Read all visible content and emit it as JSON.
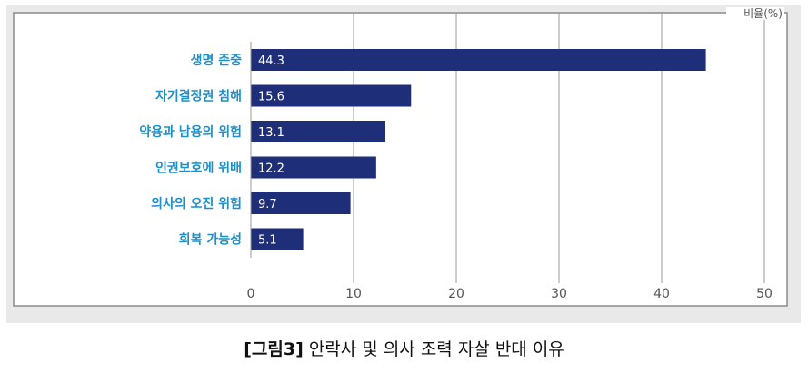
{
  "chart_data": {
    "type": "bar",
    "orientation": "horizontal",
    "categories": [
      "생명 존중",
      "자기결정권 침해",
      "약용과 남용의 위험",
      "인권보호에 위배",
      "의사의 오진 위험",
      "회복 가능성"
    ],
    "values": [
      44.3,
      15.6,
      13.1,
      12.2,
      9.7,
      5.1
    ],
    "value_labels": [
      "44.3",
      "15.6",
      "13.1",
      "12.2",
      "9.7",
      "5.1"
    ],
    "unit_label": "비율(%)",
    "xlim": [
      0,
      50
    ],
    "ticks": [
      0,
      10,
      20,
      30,
      40,
      50
    ],
    "tick_labels": [
      "0",
      "10",
      "20",
      "30",
      "40",
      "50"
    ],
    "grid": true,
    "bar_color": "#1f2e78",
    "category_label_color": "#1f8fc8",
    "plot_background": "#ffffff",
    "figure_background": "#e9e9e9"
  },
  "caption": {
    "prefix": "[그림3]",
    "text": " 안락사 및 의사 조력 자살 반대 이유"
  }
}
